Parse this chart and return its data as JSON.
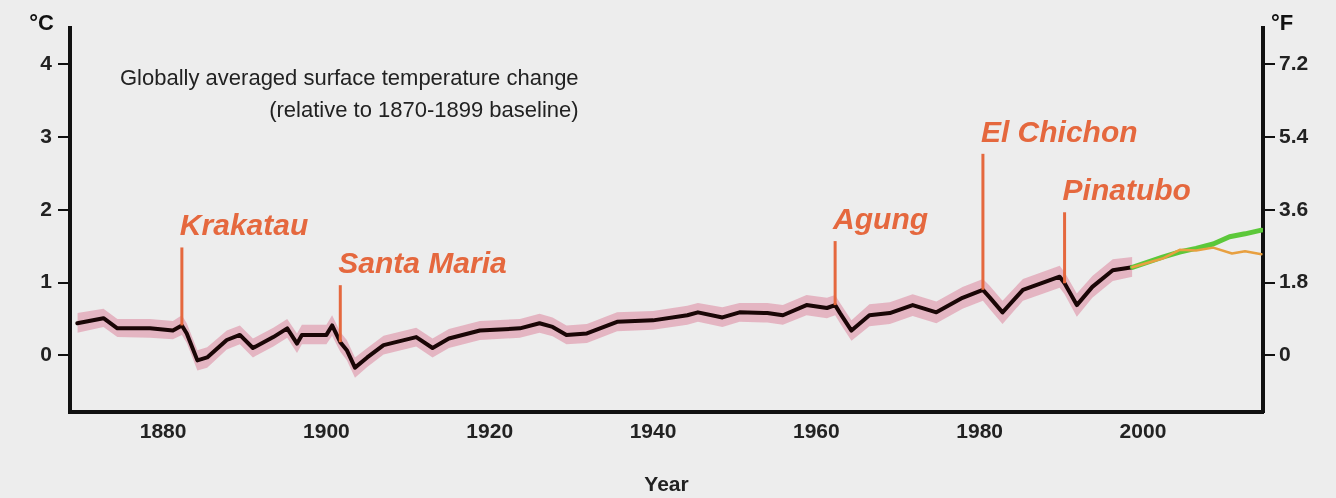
{
  "chart_data": {
    "type": "line",
    "title": "Globally averaged surface temperature change",
    "subtitle": "(relative to 1870-1899 baseline)",
    "xlabel": "Year",
    "ylabel": "°C",
    "y2label": "°F",
    "xlim": [
      1868.6,
      2014.7
    ],
    "xticks": [
      1880,
      1900,
      1920,
      1940,
      1960,
      1980,
      2000
    ],
    "ylim": [
      -0.78,
      4.5
    ],
    "yticks": [
      0,
      1,
      2,
      3,
      4
    ],
    "y2lim": [
      -1.4,
      8.1
    ],
    "y2ticks": [
      0,
      1.8,
      3.6,
      5.4,
      7.2
    ],
    "grid": false,
    "legend": false,
    "marker": "none",
    "line_style": "solid",
    "series": [
      {
        "color": "#1a0606",
        "x": [
          1869.5,
          1872.7,
          1874.4,
          1878.4,
          1881.2,
          1882.3,
          1882.9,
          1884.2,
          1885.4,
          1887.8,
          1889.4,
          1891,
          1893.5,
          1895.2,
          1896.4,
          1897,
          1900,
          1900.7,
          1901.7,
          1902.5,
          1903.5,
          1905,
          1907,
          1911,
          1913,
          1915,
          1918.8,
          1923.7,
          1926.1,
          1927.7,
          1929.4,
          1931.9,
          1935.6,
          1940,
          1944.2,
          1945.5,
          1948.5,
          1950.6,
          1954,
          1955.9,
          1958.8,
          1961.3,
          1962.3,
          1962.9,
          1964.3,
          1966.5,
          1969,
          1971.8,
          1974.7,
          1977.9,
          1980.4,
          1981.2,
          1982.8,
          1985.3,
          1989.8,
          1990.4,
          1991.9,
          1993.8,
          1996.3,
          1998.7
        ],
        "values": [
          0.44,
          0.51,
          0.37,
          0.37,
          0.34,
          0.41,
          0.3,
          -0.07,
          -0.03,
          0.21,
          0.28,
          0.1,
          0.25,
          0.37,
          0.16,
          0.28,
          0.28,
          0.41,
          0.18,
          0.07,
          -0.17,
          -0.03,
          0.14,
          0.25,
          0.1,
          0.23,
          0.34,
          0.37,
          0.44,
          0.39,
          0.28,
          0.3,
          0.46,
          0.48,
          0.55,
          0.59,
          0.52,
          0.59,
          0.58,
          0.55,
          0.69,
          0.65,
          0.69,
          0.58,
          0.34,
          0.55,
          0.58,
          0.69,
          0.59,
          0.79,
          0.9,
          0.8,
          0.59,
          0.9,
          1.08,
          0.99,
          0.69,
          0.94,
          1.17,
          1.21
        ],
        "lower": [
          0.31,
          0.39,
          0.25,
          0.24,
          0.22,
          0.28,
          0.17,
          -0.21,
          -0.17,
          0.08,
          0.15,
          -0.03,
          0.12,
          0.24,
          0.03,
          0.15,
          0.15,
          0.27,
          0.05,
          -0.07,
          -0.31,
          -0.16,
          0.01,
          0.12,
          -0.03,
          0.1,
          0.21,
          0.24,
          0.31,
          0.26,
          0.15,
          0.17,
          0.33,
          0.35,
          0.42,
          0.46,
          0.39,
          0.46,
          0.45,
          0.42,
          0.55,
          0.51,
          0.55,
          0.44,
          0.2,
          0.4,
          0.43,
          0.54,
          0.44,
          0.64,
          0.75,
          0.64,
          0.43,
          0.75,
          0.93,
          0.84,
          0.53,
          0.79,
          1.02,
          1.08
        ],
        "upper": [
          0.58,
          0.64,
          0.5,
          0.5,
          0.47,
          0.55,
          0.44,
          0.07,
          0.11,
          0.34,
          0.41,
          0.23,
          0.38,
          0.5,
          0.3,
          0.42,
          0.42,
          0.55,
          0.32,
          0.21,
          -0.03,
          0.1,
          0.27,
          0.38,
          0.23,
          0.36,
          0.47,
          0.5,
          0.57,
          0.52,
          0.41,
          0.43,
          0.59,
          0.61,
          0.68,
          0.72,
          0.66,
          0.72,
          0.72,
          0.69,
          0.83,
          0.79,
          0.83,
          0.72,
          0.48,
          0.7,
          0.73,
          0.84,
          0.74,
          0.94,
          1.05,
          0.96,
          0.75,
          1.05,
          1.23,
          1.14,
          0.85,
          1.09,
          1.32,
          1.35
        ]
      },
      {
        "color": "#e8a040",
        "x": [
          1998.7,
          2002.4,
          2004.5,
          2006.5,
          2008.6,
          2010.9,
          2012.5,
          2014.5
        ],
        "values": [
          1.21,
          1.33,
          1.45,
          1.44,
          1.48,
          1.4,
          1.43,
          1.39
        ]
      },
      {
        "color": "#5cc83a",
        "x": [
          1998.7,
          2002.4,
          2004.5,
          2006.5,
          2008.6,
          2010.6,
          2012.5,
          2014.5
        ],
        "values": [
          1.21,
          1.35,
          1.42,
          1.47,
          1.53,
          1.63,
          1.67,
          1.72
        ]
      }
    ],
    "annotations": [
      {
        "text": "Krakatau",
        "x": 1882.3,
        "y": 0.41
      },
      {
        "text": "Santa Maria",
        "x": 1901.7,
        "y": 0.18
      },
      {
        "text": "Agung",
        "x": 1962.3,
        "y": 0.69
      },
      {
        "text": "El Chichon",
        "x": 1980.4,
        "y": 0.9
      },
      {
        "text": "Pinatubo",
        "x": 1990.4,
        "y": 0.99
      }
    ]
  }
}
